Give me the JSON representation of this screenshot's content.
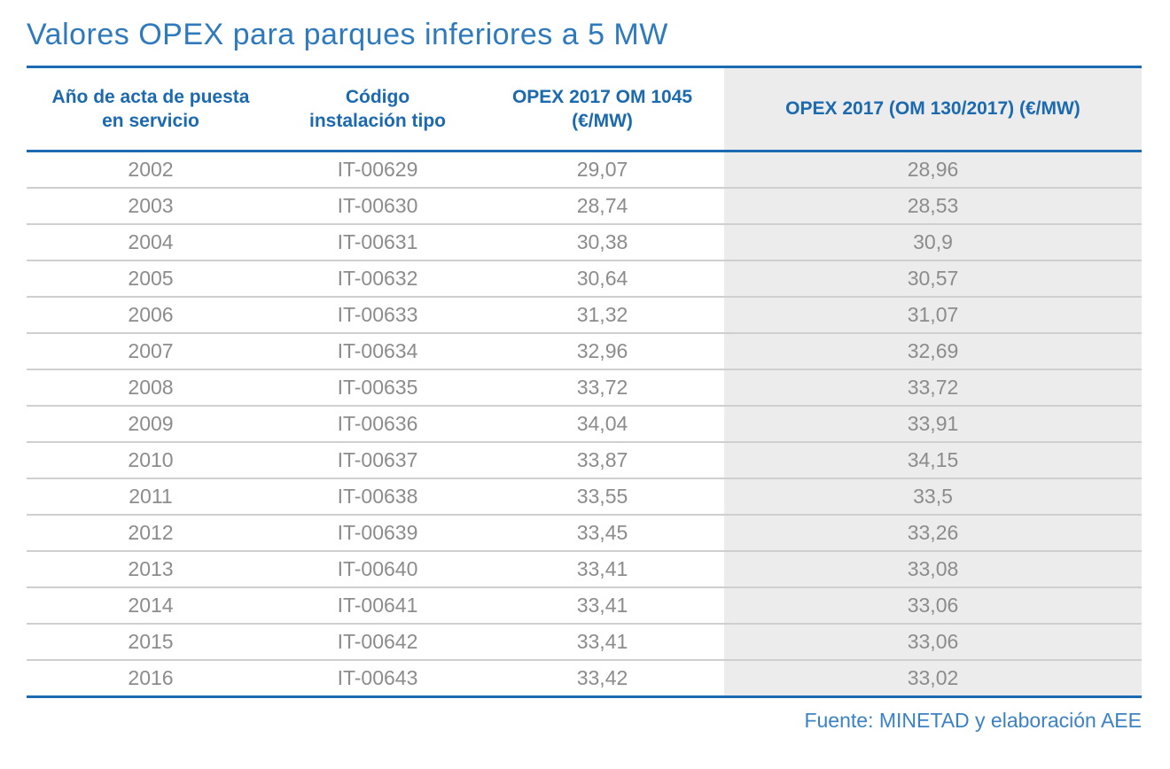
{
  "title": "Valores OPEX para parques inferiores a 5 MW",
  "colors": {
    "accent_blue": "#1c6bb2",
    "title_blue": "#2e7abd",
    "header_text_blue": "#1b69af",
    "body_text_gray": "#8c8c8c",
    "shaded_column_bg": "#ececec",
    "row_separator": "#cfcfcf",
    "source_blue": "#3b82c4"
  },
  "table": {
    "headers": [
      {
        "line1": "Año de acta de puesta",
        "line2": "en servicio"
      },
      {
        "line1": "Código",
        "line2": "instalación tipo"
      },
      {
        "line1": "OPEX 2017 OM 1045",
        "line2": "(€/MW)"
      },
      {
        "line1": "OPEX 2017 (OM 130/2017) (€/MW)",
        "line2": ""
      }
    ],
    "rows": [
      {
        "year": "2002",
        "code": "IT-00629",
        "opex_om1045": "29,07",
        "opex_om130": "28,96"
      },
      {
        "year": "2003",
        "code": "IT-00630",
        "opex_om1045": "28,74",
        "opex_om130": "28,53"
      },
      {
        "year": "2004",
        "code": "IT-00631",
        "opex_om1045": "30,38",
        "opex_om130": "30,9"
      },
      {
        "year": "2005",
        "code": "IT-00632",
        "opex_om1045": "30,64",
        "opex_om130": "30,57"
      },
      {
        "year": "2006",
        "code": "IT-00633",
        "opex_om1045": "31,32",
        "opex_om130": "31,07"
      },
      {
        "year": "2007",
        "code": "IT-00634",
        "opex_om1045": "32,96",
        "opex_om130": "32,69"
      },
      {
        "year": "2008",
        "code": "IT-00635",
        "opex_om1045": "33,72",
        "opex_om130": "33,72"
      },
      {
        "year": "2009",
        "code": "IT-00636",
        "opex_om1045": "34,04",
        "opex_om130": "33,91"
      },
      {
        "year": "2010",
        "code": "IT-00637",
        "opex_om1045": "33,87",
        "opex_om130": "34,15"
      },
      {
        "year": "2011",
        "code": "IT-00638",
        "opex_om1045": "33,55",
        "opex_om130": "33,5"
      },
      {
        "year": "2012",
        "code": "IT-00639",
        "opex_om1045": "33,45",
        "opex_om130": "33,26"
      },
      {
        "year": "2013",
        "code": "IT-00640",
        "opex_om1045": "33,41",
        "opex_om130": "33,08"
      },
      {
        "year": "2014",
        "code": "IT-00641",
        "opex_om1045": "33,41",
        "opex_om130": "33,06"
      },
      {
        "year": "2015",
        "code": "IT-00642",
        "opex_om1045": "33,41",
        "opex_om130": "33,06"
      },
      {
        "year": "2016",
        "code": "IT-00643",
        "opex_om1045": "33,42",
        "opex_om130": "33,02"
      }
    ]
  },
  "footer": {
    "source": "Fuente: MINETAD y elaboración AEE"
  },
  "chart_data": {
    "type": "table",
    "title": "Valores OPEX para parques inferiores a 5 MW",
    "columns": [
      "Año de acta de puesta en servicio",
      "Código instalación tipo",
      "OPEX 2017 OM 1045 (€/MW)",
      "OPEX 2017 (OM 130/2017) (€/MW)"
    ],
    "rows": [
      [
        "2002",
        "IT-00629",
        29.07,
        28.96
      ],
      [
        "2003",
        "IT-00630",
        28.74,
        28.53
      ],
      [
        "2004",
        "IT-00631",
        30.38,
        30.9
      ],
      [
        "2005",
        "IT-00632",
        30.64,
        30.57
      ],
      [
        "2006",
        "IT-00633",
        31.32,
        31.07
      ],
      [
        "2007",
        "IT-00634",
        32.96,
        32.69
      ],
      [
        "2008",
        "IT-00635",
        33.72,
        33.72
      ],
      [
        "2009",
        "IT-00636",
        34.04,
        33.91
      ],
      [
        "2010",
        "IT-00637",
        33.87,
        34.15
      ],
      [
        "2011",
        "IT-00638",
        33.55,
        33.5
      ],
      [
        "2012",
        "IT-00639",
        33.45,
        33.26
      ],
      [
        "2013",
        "IT-00640",
        33.41,
        33.08
      ],
      [
        "2014",
        "IT-00641",
        33.41,
        33.06
      ],
      [
        "2015",
        "IT-00642",
        33.41,
        33.06
      ],
      [
        "2016",
        "IT-00643",
        33.42,
        33.02
      ]
    ],
    "source": "Fuente: MINETAD y elaboración AEE",
    "layout": {
      "shaded_last_column": true,
      "values_decimal_separator": "comma"
    }
  }
}
